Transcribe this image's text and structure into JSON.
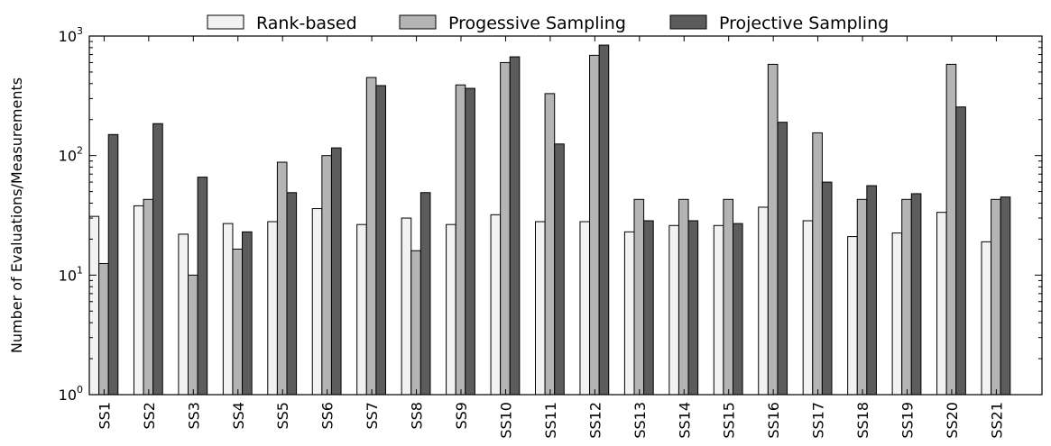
{
  "chart_data": {
    "type": "bar",
    "scale": "log",
    "ylabel": "Number of Evaluations/Measurements",
    "xlabel": "",
    "ylim": [
      1,
      1000
    ],
    "y_ticks": [
      {
        "base": "10",
        "exp": "0"
      },
      {
        "base": "10",
        "exp": "1"
      },
      {
        "base": "10",
        "exp": "2"
      },
      {
        "base": "10",
        "exp": "3"
      }
    ],
    "legend_position": "top-center",
    "categories": [
      "SS1",
      "SS2",
      "SS3",
      "SS4",
      "SS5",
      "SS6",
      "SS7",
      "SS8",
      "SS9",
      "SS10",
      "SS11",
      "SS12",
      "SS13",
      "SS14",
      "SS15",
      "SS16",
      "SS17",
      "SS18",
      "SS19",
      "SS20",
      "SS21"
    ],
    "series": [
      {
        "name": "Rank-based",
        "color": "#f2f2f2",
        "values": [
          31,
          38,
          22,
          27,
          28,
          36,
          26.5,
          30,
          26.5,
          32,
          28,
          28,
          23,
          26,
          26,
          37,
          28.5,
          21,
          22.5,
          33.5,
          19
        ]
      },
      {
        "name": "Progessive Sampling",
        "color": "#b4b4b4",
        "values": [
          12.5,
          43,
          10,
          16.5,
          88,
          100,
          450,
          16,
          390,
          600,
          330,
          690,
          43,
          43,
          43,
          580,
          155,
          43,
          43,
          580,
          43
        ]
      },
      {
        "name": "Projective Sampling",
        "color": "#5c5c5c",
        "values": [
          150,
          185,
          66,
          23,
          49,
          116,
          385,
          49,
          365,
          670,
          125,
          840,
          28.5,
          28.5,
          27,
          190,
          60,
          56,
          48,
          255,
          45
        ]
      }
    ]
  }
}
